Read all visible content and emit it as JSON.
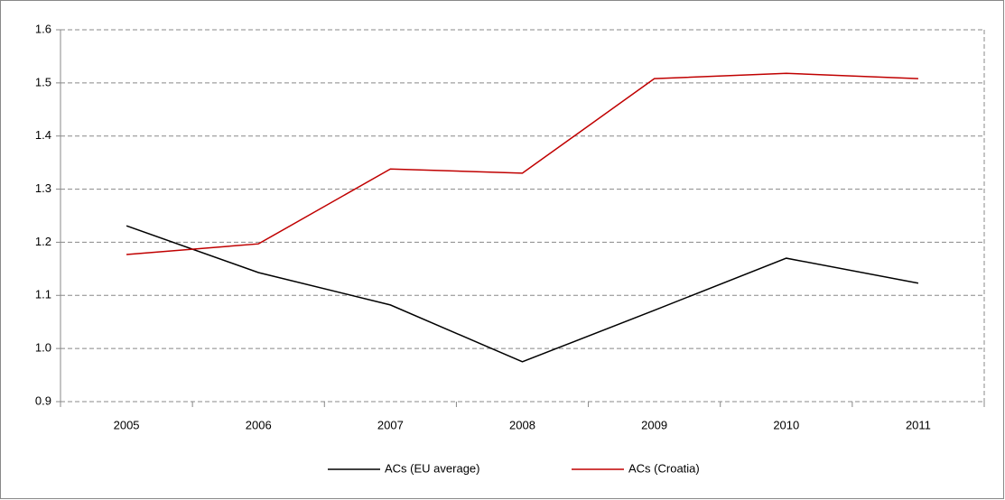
{
  "chart_data": {
    "type": "line",
    "categories": [
      "2005",
      "2006",
      "2007",
      "2008",
      "2009",
      "2010",
      "2011"
    ],
    "series": [
      {
        "name": "ACs (EU average)",
        "color": "#000000",
        "values": [
          1.231,
          1.143,
          1.082,
          0.975,
          1.072,
          1.17,
          1.123
        ]
      },
      {
        "name": "ACs (Croatia)",
        "color": "#c00000",
        "values": [
          1.177,
          1.197,
          1.338,
          1.33,
          1.508,
          1.518,
          1.508
        ]
      }
    ],
    "ylim": [
      0.9,
      1.6
    ],
    "yticks": [
      0.9,
      {
        "value": 1,
        "label": "1.0"
      },
      1.1,
      1.2,
      1.3,
      1.4,
      1.5,
      1.6
    ],
    "grid": true,
    "legend": "bottom"
  }
}
